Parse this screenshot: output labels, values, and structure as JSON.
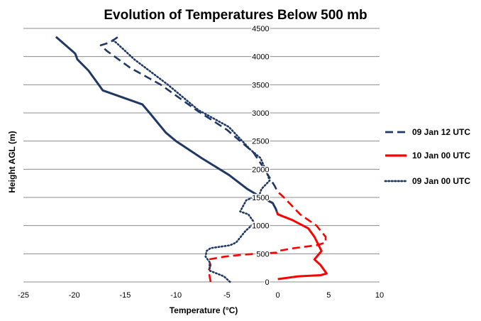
{
  "chart_data": {
    "type": "line",
    "title": "Evolution of Temperatures Below 500 mb",
    "xlabel": "Temperature (°C)",
    "ylabel": "Height AGL (m)",
    "xlim": [
      -25,
      10
    ],
    "ylim": [
      0,
      4500
    ],
    "xticks": [
      -25,
      -20,
      -15,
      -10,
      -5,
      0,
      5,
      10
    ],
    "yticks": [
      0,
      500,
      1000,
      1500,
      2000,
      2500,
      3000,
      3500,
      4000,
      4500
    ],
    "grid": "horizontal",
    "legend_position": "right",
    "series": [
      {
        "name": "09 Jan 12 UTC",
        "colors": [
          "#1f3864",
          "#ff0000"
        ],
        "color_split_height": 1650,
        "style": "dashed",
        "points": [
          [
            -6.6,
            0
          ],
          [
            -6.8,
            200
          ],
          [
            -6.6,
            300
          ],
          [
            -6.8,
            400
          ],
          [
            -5.2,
            450
          ],
          [
            -3.6,
            480
          ],
          [
            -2.2,
            500
          ],
          [
            -0.1,
            520
          ],
          [
            0,
            550
          ],
          [
            1.6,
            600
          ],
          [
            3.8,
            650
          ],
          [
            4.7,
            700
          ],
          [
            4.7,
            800
          ],
          [
            3.8,
            1000
          ],
          [
            2.2,
            1200
          ],
          [
            0.6,
            1500
          ],
          [
            0,
            1600
          ],
          [
            -0.3,
            1700
          ],
          [
            -1.3,
            2000
          ],
          [
            -2.4,
            2300
          ],
          [
            -5,
            2700
          ],
          [
            -8,
            3050
          ],
          [
            -11.5,
            3500
          ],
          [
            -14.5,
            3800
          ],
          [
            -16.8,
            4100
          ],
          [
            -17.4,
            4200
          ],
          [
            -16.5,
            4250
          ],
          [
            -15.7,
            4350
          ]
        ]
      },
      {
        "name": "10 Jan 00 UTC",
        "colors": [
          "#1f3864",
          "#ff0000"
        ],
        "color_split_height": 1250,
        "style": "solid",
        "points": [
          [
            0,
            50
          ],
          [
            2,
            100
          ],
          [
            4.2,
            120
          ],
          [
            4.8,
            150
          ],
          [
            4.2,
            300
          ],
          [
            3.6,
            400
          ],
          [
            4.3,
            550
          ],
          [
            3.6,
            800
          ],
          [
            3,
            950
          ],
          [
            1.4,
            1100
          ],
          [
            0,
            1200
          ],
          [
            -0.2,
            1300
          ],
          [
            -0.5,
            1400
          ],
          [
            -1.6,
            1500
          ],
          [
            -3,
            1650
          ],
          [
            -4.8,
            1900
          ],
          [
            -7.5,
            2200
          ],
          [
            -10,
            2500
          ],
          [
            -11,
            2650
          ],
          [
            -12.6,
            3000
          ],
          [
            -13.3,
            3150
          ],
          [
            -17.2,
            3400
          ],
          [
            -17.8,
            3550
          ],
          [
            -18.6,
            3750
          ],
          [
            -19.7,
            3950
          ],
          [
            -19.9,
            4050
          ],
          [
            -20.2,
            4100
          ],
          [
            -21.8,
            4350
          ]
        ]
      },
      {
        "name": "09 Jan 00 UTC",
        "colors": [
          "#1f3864"
        ],
        "style": "dotted",
        "points": [
          [
            -4.7,
            0
          ],
          [
            -5.3,
            100
          ],
          [
            -6.7,
            200
          ],
          [
            -6.7,
            350
          ],
          [
            -7.1,
            450
          ],
          [
            -7,
            550
          ],
          [
            -6.6,
            600
          ],
          [
            -4.7,
            650
          ],
          [
            -4.1,
            700
          ],
          [
            -3.2,
            900
          ],
          [
            -2.3,
            1050
          ],
          [
            -2.9,
            1200
          ],
          [
            -3.7,
            1250
          ],
          [
            -3.1,
            1450
          ],
          [
            -1.8,
            1550
          ],
          [
            -1.6,
            1650
          ],
          [
            -0.8,
            1800
          ],
          [
            -1.1,
            1950
          ],
          [
            -1.7,
            2200
          ],
          [
            -2.7,
            2350
          ],
          [
            -4.8,
            2750
          ],
          [
            -7.8,
            3050
          ],
          [
            -10.8,
            3500
          ],
          [
            -14.1,
            3950
          ],
          [
            -15.9,
            4250
          ],
          [
            -16.3,
            4300
          ]
        ]
      }
    ]
  }
}
